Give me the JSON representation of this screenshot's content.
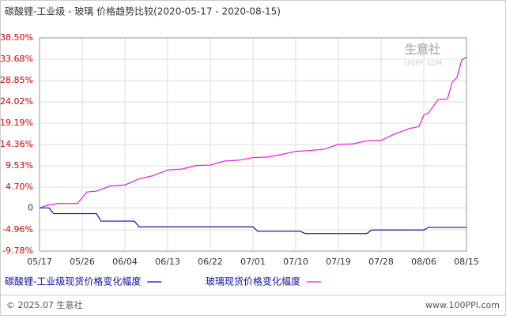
{
  "chart_data": {
    "type": "line",
    "title": "碳酸锂-工业级 - 玻璃 价格趋势比较(2020-05-17 - 2020-08-15)",
    "xlim": [
      0,
      90
    ],
    "xticks": [
      {
        "value": 0,
        "label": "05/17"
      },
      {
        "value": 9,
        "label": "05/26"
      },
      {
        "value": 18,
        "label": "06/04"
      },
      {
        "value": 27,
        "label": "06/13"
      },
      {
        "value": 36,
        "label": "06/22"
      },
      {
        "value": 45,
        "label": "07/01"
      },
      {
        "value": 54,
        "label": "07/10"
      },
      {
        "value": 63,
        "label": "07/19"
      },
      {
        "value": 72,
        "label": "07/28"
      },
      {
        "value": 81,
        "label": "08/06"
      },
      {
        "value": 90,
        "label": "08/15"
      }
    ],
    "ylim": [
      -9.78,
      38.5
    ],
    "yticks": [
      {
        "value": -9.78,
        "label": "-9.78%"
      },
      {
        "value": -4.96,
        "label": "-4.96%"
      },
      0,
      {
        "value": 4.7,
        "label": "4.70%"
      },
      {
        "value": 9.53,
        "label": "9.53%"
      },
      {
        "value": 14.36,
        "label": "14.36%"
      },
      {
        "value": 19.19,
        "label": "19.19%"
      },
      {
        "value": 24.02,
        "label": "24.02%"
      },
      {
        "value": 28.85,
        "label": "28.85%"
      },
      {
        "value": 33.68,
        "label": "33.68%"
      },
      {
        "value": 38.5,
        "label": "38.50%"
      }
    ],
    "grid": true,
    "series": [
      {
        "name": "碳酸锂-工业级现货价格变化幅度",
        "color": "#1010a0",
        "x": [
          0,
          2,
          3,
          12,
          13,
          20,
          21,
          45,
          46,
          55,
          56,
          69,
          70,
          81,
          82,
          90
        ],
        "values": [
          0,
          0,
          -1.3,
          -1.3,
          -3.0,
          -3.0,
          -4.3,
          -4.3,
          -5.3,
          -5.3,
          -5.8,
          -5.8,
          -5.0,
          -5.0,
          -4.4,
          -4.4
        ]
      },
      {
        "name": "玻璃现货价格变化幅度",
        "color": "#e020e0",
        "x": [
          0,
          2,
          4,
          8,
          10,
          12,
          15,
          18,
          21,
          24,
          27,
          30,
          33,
          36,
          39,
          42,
          45,
          48,
          51,
          54,
          57,
          60,
          63,
          66,
          69,
          72,
          75,
          78,
          80,
          81,
          82,
          84,
          86,
          87,
          88,
          89,
          90
        ],
        "values": [
          0,
          0.7,
          1.0,
          1.0,
          3.6,
          3.8,
          5.0,
          5.2,
          6.6,
          7.3,
          8.6,
          8.8,
          9.6,
          9.7,
          10.6,
          10.8,
          11.4,
          11.5,
          12.1,
          12.8,
          13.0,
          13.3,
          14.4,
          14.5,
          15.2,
          15.3,
          16.8,
          18.0,
          18.4,
          21.0,
          21.5,
          24.5,
          24.7,
          28.5,
          29.5,
          33.5,
          34.2
        ]
      }
    ],
    "watermark": "生意社",
    "watermark_url": "100PPI.COM",
    "copyright": "© 2025.07 生意社",
    "site": "www.100PPI.com"
  }
}
